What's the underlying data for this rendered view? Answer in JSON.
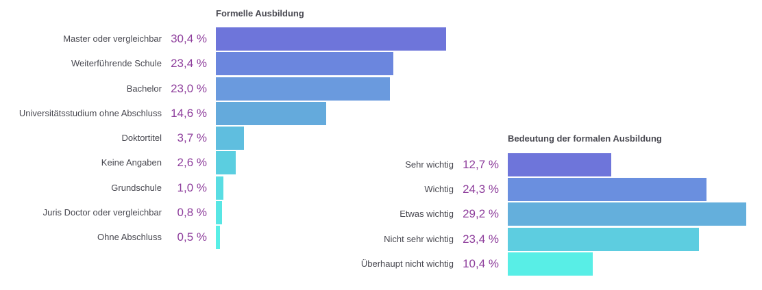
{
  "chart_data": [
    {
      "type": "bar",
      "orientation": "horizontal",
      "title": "Formelle Ausbildung",
      "categories": [
        "Master oder vergleichbar",
        "Weiterführende Schule",
        "Bachelor",
        "Universitätsstudium ohne Abschluss",
        "Doktortitel",
        "Keine Angaben",
        "Grundschule",
        "Juris Doctor oder vergleichbar",
        "Ohne Abschluss"
      ],
      "values": [
        30.4,
        23.4,
        23.0,
        14.6,
        3.7,
        2.6,
        1.0,
        0.8,
        0.5
      ],
      "value_labels": [
        "30,4 %",
        "23,4 %",
        "23,0 %",
        "14,6 %",
        "3,7 %",
        "2,6 %",
        "1,0 %",
        "0,8 %",
        "0,5 %"
      ],
      "xlim": [
        0,
        30.4
      ],
      "colors": [
        "#6e75da",
        "#6b86de",
        "#6a9ade",
        "#64aadc",
        "#5fbedf",
        "#5bcee0",
        "#59dde3",
        "#58e6e4",
        "#58efe6"
      ]
    },
    {
      "type": "bar",
      "orientation": "horizontal",
      "title": "Bedeutung der formalen Ausbildung",
      "categories": [
        "Sehr wichtig",
        "Wichtig",
        "Etwas wichtig",
        "Nicht sehr wichtig",
        "Überhaupt nicht wichtig"
      ],
      "values": [
        12.7,
        24.3,
        29.2,
        23.4,
        10.4
      ],
      "value_labels": [
        "12,7 %",
        "24,3 %",
        "29,2 %",
        "23,4 %",
        "10,4 %"
      ],
      "xlim": [
        0,
        29.2
      ],
      "colors": [
        "#6e75da",
        "#6a8fdf",
        "#64afdc",
        "#5dcde0",
        "#58eee6"
      ]
    }
  ]
}
